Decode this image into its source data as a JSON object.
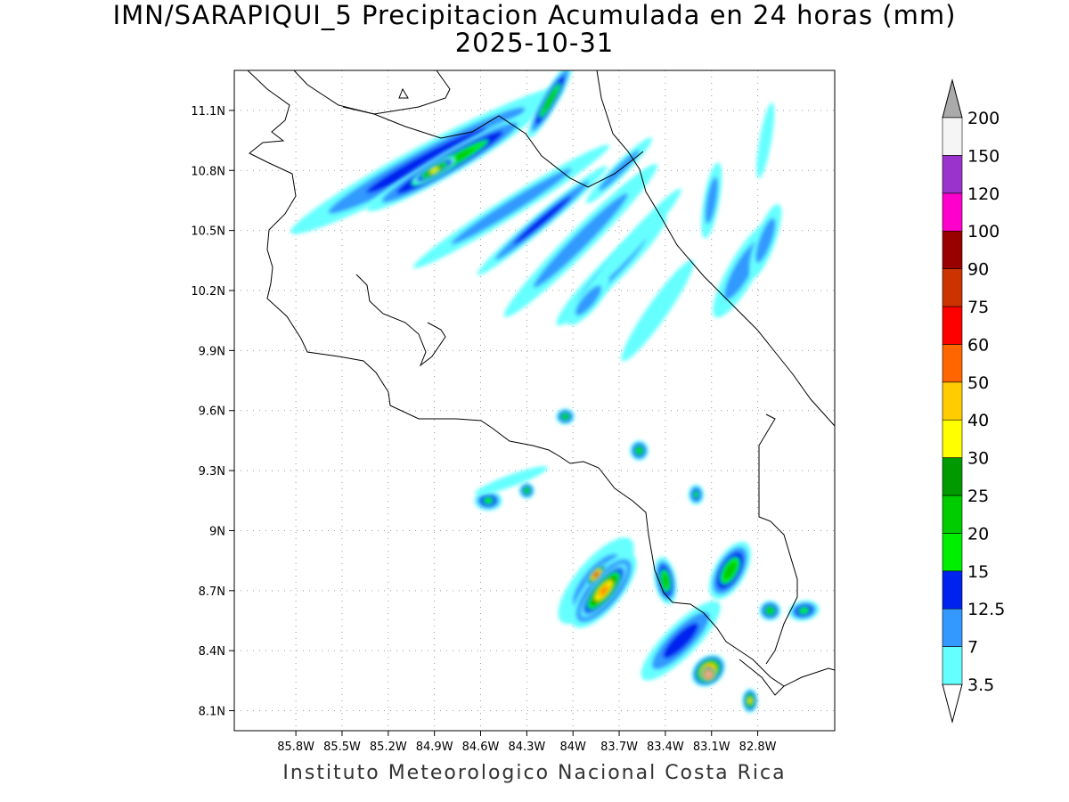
{
  "title": {
    "line1": "IMN/SARAPIQUI_5 Precipitacion Acumulada en 24 horas (mm)",
    "line2": "2025-10-31"
  },
  "footer": "Instituto Meteorologico Nacional Costa Rica",
  "map": {
    "lon_range": [
      -86.2,
      -82.3
    ],
    "lat_range": [
      8.0,
      11.3
    ],
    "lon_ticks": [
      "85.8W",
      "85.5W",
      "85.2W",
      "84.9W",
      "84.6W",
      "84.3W",
      "84W",
      "83.7W",
      "83.4W",
      "83.1W",
      "82.8W"
    ],
    "lon_tick_values": [
      -85.8,
      -85.5,
      -85.2,
      -84.9,
      -84.6,
      -84.3,
      -84.0,
      -83.7,
      -83.4,
      -83.1,
      -82.8
    ],
    "lat_ticks": [
      "11.1N",
      "10.8N",
      "10.5N",
      "10.2N",
      "9.9N",
      "9.6N",
      "9.3N",
      "9N",
      "8.7N",
      "8.4N",
      "8.1N"
    ],
    "lat_tick_values": [
      11.1,
      10.8,
      10.5,
      10.2,
      9.9,
      9.6,
      9.3,
      9.0,
      8.7,
      8.4,
      8.1
    ],
    "grid": "dotted"
  },
  "colorbar": {
    "labels": [
      "3.5",
      "7",
      "12.5",
      "15",
      "20",
      "25",
      "30",
      "40",
      "50",
      "60",
      "75",
      "90",
      "100",
      "120",
      "150",
      "200"
    ],
    "colors": [
      "#66ffff",
      "#3399ff",
      "#0022ee",
      "#00ee00",
      "#00cc00",
      "#009900",
      "#ffff00",
      "#ffcc00",
      "#ff6600",
      "#ff0000",
      "#cc3300",
      "#990000",
      "#ff00cc",
      "#9933cc",
      "#f5f5f5"
    ],
    "over_color": "#aaaaaa",
    "under_color": "#ffffff"
  },
  "precip_cells": [
    {
      "lon": -84.95,
      "lat": 10.85,
      "rx": 1.0,
      "ry": 0.08,
      "rot": -28,
      "level": 2
    },
    {
      "lon": -84.8,
      "lat": 10.84,
      "rx": 0.62,
      "ry": 0.06,
      "rot": -30,
      "level": 4
    },
    {
      "lon": -84.9,
      "lat": 10.8,
      "rx": 0.16,
      "ry": 0.035,
      "rot": -30,
      "level": 6
    },
    {
      "lon": -84.15,
      "lat": 11.15,
      "rx": 0.28,
      "ry": 0.04,
      "rot": -60,
      "level": 4
    },
    {
      "lon": -84.4,
      "lat": 10.62,
      "rx": 0.75,
      "ry": 0.05,
      "rot": -32,
      "level": 1
    },
    {
      "lon": -84.2,
      "lat": 10.55,
      "rx": 0.55,
      "ry": 0.04,
      "rot": -40,
      "level": 2
    },
    {
      "lon": -83.95,
      "lat": 10.45,
      "rx": 0.7,
      "ry": 0.06,
      "rot": -45,
      "level": 1
    },
    {
      "lon": -83.75,
      "lat": 10.3,
      "rx": 0.5,
      "ry": 0.06,
      "rot": -45,
      "level": 1
    },
    {
      "lon": -83.6,
      "lat": 10.45,
      "rx": 0.45,
      "ry": 0.04,
      "rot": -48,
      "level": 0
    },
    {
      "lon": -83.9,
      "lat": 10.15,
      "rx": 0.2,
      "ry": 0.05,
      "rot": -50,
      "level": 1
    },
    {
      "lon": -83.45,
      "lat": 10.1,
      "rx": 0.4,
      "ry": 0.05,
      "rot": -55,
      "level": 0
    },
    {
      "lon": -82.9,
      "lat": 10.3,
      "rx": 0.35,
      "ry": 0.07,
      "rot": -60,
      "level": 1
    },
    {
      "lon": -82.75,
      "lat": 10.45,
      "rx": 0.25,
      "ry": 0.05,
      "rot": -70,
      "level": 1
    },
    {
      "lon": -82.75,
      "lat": 10.95,
      "rx": 0.25,
      "ry": 0.03,
      "rot": -80,
      "level": 0
    },
    {
      "lon": -83.1,
      "lat": 10.65,
      "rx": 0.25,
      "ry": 0.04,
      "rot": -80,
      "level": 1
    },
    {
      "lon": -83.7,
      "lat": 10.8,
      "rx": 0.3,
      "ry": 0.035,
      "rot": -45,
      "level": 1
    },
    {
      "lon": -84.05,
      "lat": 9.57,
      "rx": 0.06,
      "ry": 0.04,
      "rot": 0,
      "level": 4
    },
    {
      "lon": -83.57,
      "lat": 9.4,
      "rx": 0.06,
      "ry": 0.05,
      "rot": 0,
      "level": 4
    },
    {
      "lon": -83.2,
      "lat": 9.18,
      "rx": 0.05,
      "ry": 0.05,
      "rot": 0,
      "level": 3
    },
    {
      "lon": -84.55,
      "lat": 9.15,
      "rx": 0.09,
      "ry": 0.05,
      "rot": 0,
      "level": 3
    },
    {
      "lon": -84.3,
      "lat": 9.2,
      "rx": 0.05,
      "ry": 0.04,
      "rot": 0,
      "level": 4
    },
    {
      "lon": -84.4,
      "lat": 9.25,
      "rx": 0.25,
      "ry": 0.03,
      "rot": -20,
      "level": 0
    },
    {
      "lon": -83.85,
      "lat": 8.75,
      "rx": 0.35,
      "ry": 0.1,
      "rot": -50,
      "level": 1
    },
    {
      "lon": -83.8,
      "lat": 8.7,
      "rx": 0.3,
      "ry": 0.09,
      "rot": -50,
      "level": 5
    },
    {
      "lon": -83.8,
      "lat": 8.7,
      "rx": 0.22,
      "ry": 0.06,
      "rot": -50,
      "level": 8
    },
    {
      "lon": -83.85,
      "lat": 8.78,
      "rx": 0.09,
      "ry": 0.03,
      "rot": -50,
      "level": 10
    },
    {
      "lon": -83.3,
      "lat": 8.45,
      "rx": 0.35,
      "ry": 0.08,
      "rot": -45,
      "level": 2
    },
    {
      "lon": -83.12,
      "lat": 8.3,
      "rx": 0.12,
      "ry": 0.07,
      "rot": -40,
      "level": 9
    },
    {
      "lon": -83.12,
      "lat": 8.28,
      "rx": 0.05,
      "ry": 0.04,
      "rot": -40,
      "level": 14
    },
    {
      "lon": -83.4,
      "lat": 8.75,
      "rx": 0.07,
      "ry": 0.12,
      "rot": -10,
      "level": 4
    },
    {
      "lon": -82.98,
      "lat": 8.8,
      "rx": 0.1,
      "ry": 0.16,
      "rot": 30,
      "level": 4
    },
    {
      "lon": -82.72,
      "lat": 8.6,
      "rx": 0.07,
      "ry": 0.05,
      "rot": 0,
      "level": 4
    },
    {
      "lon": -82.5,
      "lat": 8.6,
      "rx": 0.1,
      "ry": 0.05,
      "rot": -10,
      "level": 3
    },
    {
      "lon": -82.85,
      "lat": 8.15,
      "rx": 0.05,
      "ry": 0.06,
      "rot": 0,
      "level": 6
    }
  ]
}
